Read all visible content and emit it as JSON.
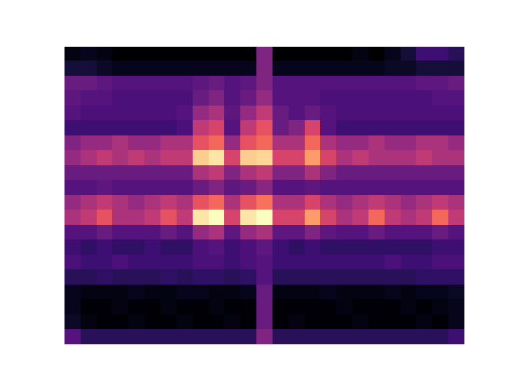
{
  "chart_data": {
    "type": "heatmap",
    "tick_labels": false,
    "cells": [
      [
        0.08,
        0.1,
        0.08,
        0.05,
        0.05,
        0.05,
        0.05,
        0.05,
        0.05,
        0.05,
        0.05,
        0.05,
        0.4,
        0.05,
        0.05,
        0.05,
        0.05,
        0.05,
        0.08,
        0.05,
        0.1,
        0.15,
        0.25,
        0.25,
        0.2
      ],
      [
        0.15,
        0.15,
        0.12,
        0.1,
        0.1,
        0.1,
        0.1,
        0.1,
        0.1,
        0.1,
        0.1,
        0.1,
        0.4,
        0.1,
        0.1,
        0.1,
        0.1,
        0.1,
        0.1,
        0.1,
        0.12,
        0.12,
        0.15,
        0.15,
        0.15
      ],
      [
        0.35,
        0.35,
        0.32,
        0.3,
        0.3,
        0.3,
        0.3,
        0.3,
        0.32,
        0.35,
        0.3,
        0.32,
        0.4,
        0.3,
        0.3,
        0.3,
        0.3,
        0.3,
        0.3,
        0.3,
        0.3,
        0.3,
        0.32,
        0.32,
        0.35
      ],
      [
        0.32,
        0.3,
        0.3,
        0.28,
        0.28,
        0.28,
        0.28,
        0.28,
        0.35,
        0.4,
        0.3,
        0.35,
        0.45,
        0.3,
        0.3,
        0.3,
        0.28,
        0.28,
        0.28,
        0.28,
        0.28,
        0.28,
        0.28,
        0.3,
        0.3
      ],
      [
        0.3,
        0.28,
        0.28,
        0.28,
        0.28,
        0.28,
        0.28,
        0.3,
        0.45,
        0.5,
        0.32,
        0.45,
        0.55,
        0.35,
        0.3,
        0.35,
        0.3,
        0.28,
        0.28,
        0.28,
        0.28,
        0.28,
        0.28,
        0.28,
        0.28
      ],
      [
        0.25,
        0.25,
        0.25,
        0.25,
        0.25,
        0.25,
        0.25,
        0.28,
        0.55,
        0.6,
        0.3,
        0.55,
        0.65,
        0.35,
        0.4,
        0.6,
        0.3,
        0.25,
        0.25,
        0.25,
        0.25,
        0.25,
        0.25,
        0.25,
        0.25
      ],
      [
        0.4,
        0.45,
        0.45,
        0.5,
        0.45,
        0.45,
        0.5,
        0.5,
        0.65,
        0.7,
        0.45,
        0.65,
        0.7,
        0.5,
        0.5,
        0.7,
        0.5,
        0.45,
        0.45,
        0.5,
        0.45,
        0.45,
        0.5,
        0.5,
        0.45
      ],
      [
        0.45,
        0.5,
        0.55,
        0.5,
        0.55,
        0.5,
        0.55,
        0.55,
        0.9,
        0.95,
        0.6,
        0.9,
        0.92,
        0.6,
        0.6,
        0.8,
        0.6,
        0.5,
        0.55,
        0.5,
        0.5,
        0.5,
        0.55,
        0.5,
        0.5
      ],
      [
        0.35,
        0.35,
        0.35,
        0.35,
        0.35,
        0.35,
        0.35,
        0.35,
        0.5,
        0.55,
        0.4,
        0.5,
        0.55,
        0.4,
        0.4,
        0.5,
        0.4,
        0.35,
        0.35,
        0.35,
        0.35,
        0.35,
        0.35,
        0.35,
        0.35
      ],
      [
        0.3,
        0.3,
        0.32,
        0.3,
        0.3,
        0.3,
        0.3,
        0.3,
        0.35,
        0.4,
        0.32,
        0.35,
        0.42,
        0.3,
        0.3,
        0.32,
        0.3,
        0.3,
        0.3,
        0.3,
        0.3,
        0.3,
        0.3,
        0.3,
        0.3
      ],
      [
        0.45,
        0.5,
        0.55,
        0.5,
        0.45,
        0.5,
        0.55,
        0.5,
        0.65,
        0.7,
        0.5,
        0.65,
        0.72,
        0.5,
        0.5,
        0.6,
        0.5,
        0.45,
        0.5,
        0.55,
        0.5,
        0.45,
        0.5,
        0.55,
        0.5
      ],
      [
        0.5,
        0.55,
        0.65,
        0.5,
        0.5,
        0.55,
        0.65,
        0.55,
        0.95,
        1.0,
        0.6,
        0.95,
        1.0,
        0.6,
        0.6,
        0.8,
        0.6,
        0.5,
        0.55,
        0.7,
        0.55,
        0.5,
        0.55,
        0.7,
        0.55
      ],
      [
        0.3,
        0.3,
        0.35,
        0.3,
        0.3,
        0.3,
        0.35,
        0.3,
        0.45,
        0.5,
        0.32,
        0.45,
        0.5,
        0.32,
        0.32,
        0.4,
        0.32,
        0.3,
        0.3,
        0.35,
        0.3,
        0.3,
        0.3,
        0.35,
        0.3
      ],
      [
        0.25,
        0.22,
        0.25,
        0.22,
        0.22,
        0.25,
        0.22,
        0.22,
        0.28,
        0.3,
        0.25,
        0.28,
        0.32,
        0.25,
        0.22,
        0.25,
        0.22,
        0.22,
        0.22,
        0.22,
        0.22,
        0.22,
        0.22,
        0.25,
        0.25
      ],
      [
        0.28,
        0.25,
        0.25,
        0.28,
        0.25,
        0.25,
        0.25,
        0.25,
        0.28,
        0.28,
        0.25,
        0.28,
        0.3,
        0.25,
        0.25,
        0.25,
        0.25,
        0.25,
        0.25,
        0.25,
        0.28,
        0.25,
        0.25,
        0.28,
        0.28
      ],
      [
        0.2,
        0.2,
        0.22,
        0.2,
        0.2,
        0.2,
        0.22,
        0.2,
        0.22,
        0.22,
        0.2,
        0.22,
        0.3,
        0.2,
        0.2,
        0.2,
        0.2,
        0.2,
        0.2,
        0.2,
        0.2,
        0.2,
        0.22,
        0.22,
        0.22
      ],
      [
        0.1,
        0.08,
        0.08,
        0.08,
        0.1,
        0.08,
        0.08,
        0.1,
        0.1,
        0.08,
        0.08,
        0.1,
        0.35,
        0.08,
        0.08,
        0.08,
        0.1,
        0.08,
        0.08,
        0.08,
        0.1,
        0.08,
        0.1,
        0.1,
        0.12
      ],
      [
        0.1,
        0.06,
        0.06,
        0.08,
        0.06,
        0.06,
        0.08,
        0.06,
        0.06,
        0.08,
        0.06,
        0.06,
        0.35,
        0.06,
        0.06,
        0.06,
        0.06,
        0.08,
        0.06,
        0.06,
        0.06,
        0.08,
        0.06,
        0.08,
        0.1
      ],
      [
        0.12,
        0.08,
        0.06,
        0.06,
        0.08,
        0.06,
        0.06,
        0.08,
        0.06,
        0.06,
        0.08,
        0.06,
        0.35,
        0.06,
        0.08,
        0.06,
        0.06,
        0.06,
        0.08,
        0.06,
        0.06,
        0.06,
        0.08,
        0.06,
        0.1
      ],
      [
        0.3,
        0.2,
        0.2,
        0.2,
        0.2,
        0.2,
        0.2,
        0.2,
        0.2,
        0.2,
        0.2,
        0.2,
        0.4,
        0.2,
        0.2,
        0.2,
        0.2,
        0.2,
        0.2,
        0.2,
        0.2,
        0.2,
        0.2,
        0.2,
        0.25
      ]
    ]
  }
}
